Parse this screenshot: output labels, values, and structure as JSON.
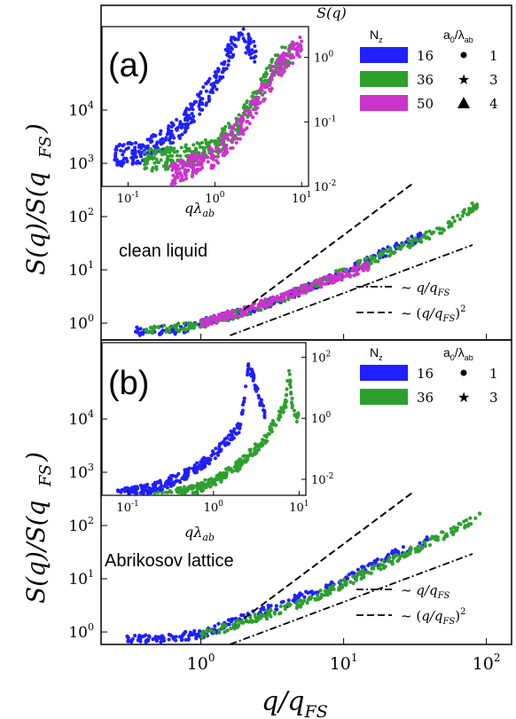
{
  "chart_data": [
    {
      "type": "scatter",
      "panel_label": "(a)",
      "annotation": "clean liquid",
      "ylabel": "S(q)/S(q_FS)",
      "xlabel": "q/q_FS",
      "xscale": "log",
      "yscale": "log",
      "xlim": [
        0.2,
        150
      ],
      "ylim": [
        0.5,
        100000
      ],
      "x_ticks": [
        "10^0",
        "10^1",
        "10^2"
      ],
      "y_ticks": [
        "10^0",
        "10^1",
        "10^2",
        "10^3",
        "10^4"
      ],
      "legend_left_title": "N_z",
      "legend_right_title": "a_0/λ_ab",
      "legend_entries": [
        {
          "value": "16",
          "color": "#1f1fff"
        },
        {
          "value": "36",
          "color": "#2ca02c"
        },
        {
          "value": "50",
          "color": "#cc33cc"
        }
      ],
      "marker_entries": [
        {
          "value": "1",
          "marker": "circle"
        },
        {
          "value": "3",
          "marker": "star"
        },
        {
          "value": "4",
          "marker": "triangle"
        }
      ],
      "guides": [
        {
          "label": "~ q/q_FS",
          "style": "dash-dot"
        },
        {
          "label": "~ (q/q_FS)^2",
          "style": "dashed"
        }
      ],
      "series": [
        {
          "color": "#1f1fff",
          "x": [
            0.35,
            0.7,
            1.0,
            2.0,
            5.0,
            10,
            20,
            40
          ],
          "y": [
            0.7,
            0.75,
            1.0,
            1.6,
            4.0,
            9.0,
            22,
            50
          ]
        },
        {
          "color": "#2ca02c",
          "x": [
            0.4,
            1.0,
            2.0,
            5.0,
            10,
            20,
            50,
            90
          ],
          "y": [
            0.7,
            0.95,
            1.6,
            4.0,
            9.5,
            20,
            60,
            190
          ]
        },
        {
          "color": "#cc33cc",
          "x": [
            1.0,
            2.0,
            5.0,
            10,
            15
          ],
          "y": [
            1.0,
            1.7,
            4.2,
            8.0,
            12
          ]
        }
      ],
      "inset": {
        "xlabel": "qλ_ab",
        "ylabel": "S(q)",
        "x_ticks": [
          "10^-1",
          "10^0",
          "10^1"
        ],
        "y_ticks": [
          "10^0",
          "10^-1",
          "10^-2"
        ],
        "series": [
          {
            "color": "#1f1fff",
            "x": [
              0.07,
              0.15,
              0.4,
              1.0,
              1.6,
              2.0,
              3.0
            ],
            "y": [
              0.03,
              0.035,
              0.08,
              0.4,
              1.5,
              2.0,
              1.2
            ]
          },
          {
            "color": "#2ca02c",
            "x": [
              0.15,
              0.5,
              1.0,
              2.0,
              4.0,
              6.0,
              8.0
            ],
            "y": [
              0.025,
              0.03,
              0.04,
              0.1,
              0.5,
              1.0,
              1.1
            ]
          },
          {
            "color": "#cc33cc",
            "x": [
              0.3,
              1.0,
              2.0,
              5.0,
              8.0,
              10.0
            ],
            "y": [
              0.015,
              0.03,
              0.08,
              0.6,
              1.2,
              1.5
            ]
          }
        ]
      }
    },
    {
      "type": "scatter",
      "panel_label": "(b)",
      "annotation": "Abrikosov lattice",
      "ylabel": "S(q)/S(q_FS)",
      "xlabel": "q/q_FS",
      "xscale": "log",
      "yscale": "log",
      "xlim": [
        0.2,
        150
      ],
      "ylim": [
        0.5,
        100000
      ],
      "x_ticks": [
        "10^0",
        "10^1",
        "10^2"
      ],
      "y_ticks": [
        "10^0",
        "10^1",
        "10^2",
        "10^3",
        "10^4"
      ],
      "legend_left_title": "N_z",
      "legend_right_title": "a_0/λ_ab",
      "legend_entries": [
        {
          "value": "16",
          "color": "#1f1fff"
        },
        {
          "value": "36",
          "color": "#2ca02c"
        }
      ],
      "marker_entries": [
        {
          "value": "1",
          "marker": "circle"
        },
        {
          "value": "3",
          "marker": "star"
        }
      ],
      "guides": [
        {
          "label": "~ q/q_FS",
          "style": "dash-dot"
        },
        {
          "label": "~ (q/q_FS)^2",
          "style": "dashed"
        }
      ],
      "series": [
        {
          "color": "#1f1fff",
          "x": [
            0.3,
            0.5,
            1.0,
            2.0,
            5.0,
            10,
            20,
            40
          ],
          "y": [
            0.7,
            0.75,
            0.9,
            1.8,
            4.5,
            9.0,
            25,
            55
          ]
        },
        {
          "color": "#2ca02c",
          "x": [
            1.0,
            2.0,
            5.0,
            10,
            20,
            50,
            90
          ],
          "y": [
            0.9,
            1.5,
            3.5,
            8.0,
            20,
            65,
            150
          ]
        }
      ],
      "inset": {
        "xlabel": "qλ_ab",
        "y_ticks": [
          "10^2",
          "10^0",
          "10^-2"
        ],
        "x_ticks": [
          "10^-1",
          "10^0",
          "10^1"
        ],
        "series": [
          {
            "color": "#1f1fff",
            "x": [
              0.07,
              0.2,
              0.5,
              1.0,
              2.0,
              2.4,
              2.6,
              4.0
            ],
            "y": [
              0.003,
              0.005,
              0.015,
              0.06,
              0.5,
              10,
              60,
              1.2
            ]
          },
          {
            "color": "#2ca02c",
            "x": [
              0.15,
              0.5,
              1.0,
              2.0,
              4.0,
              7.0,
              7.6,
              8.5,
              10
            ],
            "y": [
              0.002,
              0.004,
              0.008,
              0.03,
              0.2,
              3.0,
              40,
              1.5,
              1.0
            ]
          }
        ]
      }
    }
  ]
}
